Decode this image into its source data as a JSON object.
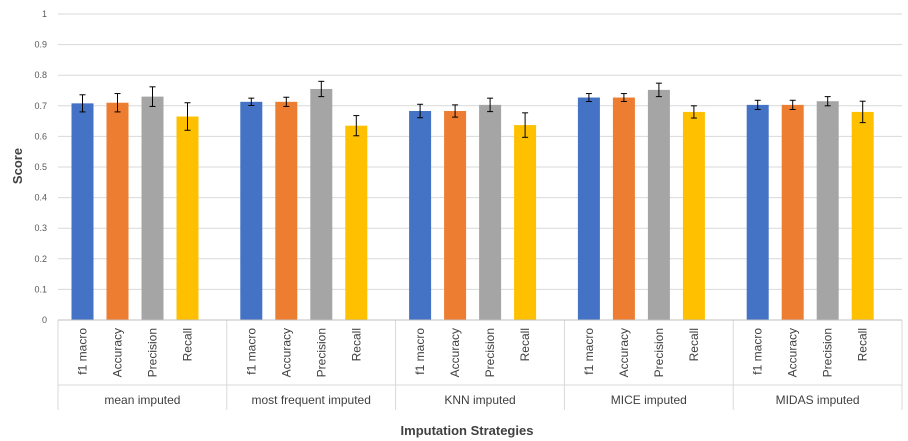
{
  "chart_data": {
    "type": "bar",
    "xlabel": "Imputation Strategies",
    "ylabel": "Score",
    "ylim": [
      0,
      1
    ],
    "yticks": [
      0,
      0.1,
      0.2,
      0.3,
      0.4,
      0.5,
      0.6,
      0.7,
      0.8,
      0.9,
      1
    ],
    "grid": true,
    "legend": "none",
    "metrics": [
      "f1 macro",
      "Accuracy",
      "Precision",
      "Recall"
    ],
    "colors": [
      "#4472C4",
      "#ED7D31",
      "#A5A5A5",
      "#FFC000"
    ],
    "groups": [
      {
        "name": "mean imputed",
        "values": [
          0.708,
          0.71,
          0.73,
          0.665
        ],
        "errors": [
          0.028,
          0.03,
          0.032,
          0.045
        ]
      },
      {
        "name": "most frequent imputed",
        "values": [
          0.713,
          0.713,
          0.755,
          0.635
        ],
        "errors": [
          0.012,
          0.015,
          0.025,
          0.033
        ]
      },
      {
        "name": "KNN imputed",
        "values": [
          0.683,
          0.683,
          0.703,
          0.637
        ],
        "errors": [
          0.022,
          0.02,
          0.022,
          0.04
        ]
      },
      {
        "name": "MICE imputed",
        "values": [
          0.727,
          0.727,
          0.752,
          0.68
        ],
        "errors": [
          0.013,
          0.013,
          0.022,
          0.02
        ]
      },
      {
        "name": "MIDAS imputed",
        "values": [
          0.703,
          0.703,
          0.715,
          0.68
        ],
        "errors": [
          0.015,
          0.015,
          0.015,
          0.035
        ]
      }
    ]
  }
}
